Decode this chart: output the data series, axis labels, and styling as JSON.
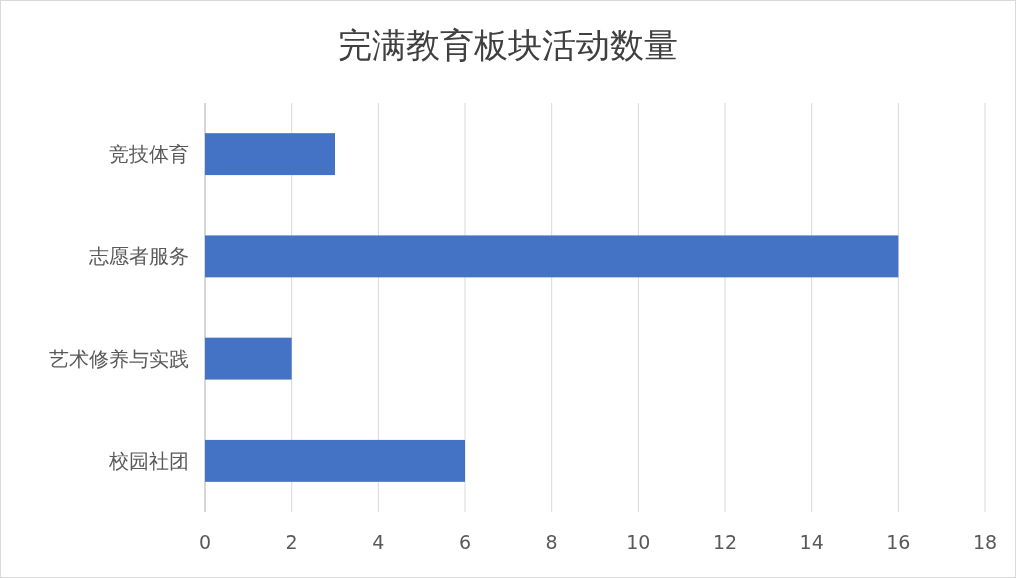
{
  "chart_data": {
    "type": "bar",
    "orientation": "horizontal",
    "title": "完满教育板块活动数量",
    "categories": [
      "竞技体育",
      "志愿者服务",
      "艺术修养与实践",
      "校园社团"
    ],
    "values": [
      3,
      16,
      2,
      6
    ],
    "color": "#4472c4",
    "xlim": [
      0,
      18
    ],
    "xticks": [
      0,
      2,
      4,
      6,
      8,
      10,
      12,
      14,
      16,
      18
    ],
    "grid": "x"
  }
}
